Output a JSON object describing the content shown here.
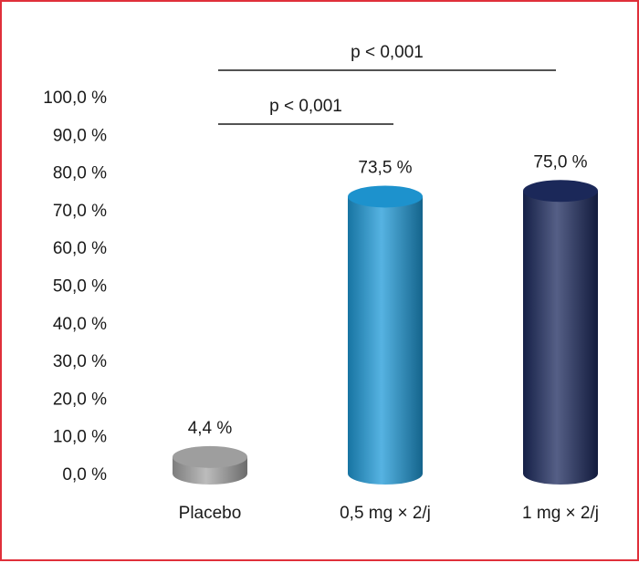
{
  "chart_data": {
    "type": "bar",
    "style": "3d-cylinder",
    "categories": [
      "Placebo",
      "0,5 mg × 2/j",
      "1 mg × 2/j"
    ],
    "values": [
      4.4,
      73.5,
      75.0
    ],
    "value_labels": [
      "4,4 %",
      "73,5 %",
      "75,0 %"
    ],
    "colors": [
      "#a6a6a6",
      "#1e9ad8",
      "#1c2a5e"
    ],
    "ylim": [
      0,
      100
    ],
    "yticks": [
      0,
      10,
      20,
      30,
      40,
      50,
      60,
      70,
      80,
      90,
      100
    ],
    "ytick_labels": [
      "0,0 %",
      "10,0 %",
      "20,0 %",
      "30,0 %",
      "40,0 %",
      "50,0 %",
      "60,0 %",
      "70,0 %",
      "80,0 %",
      "90,0 %",
      "100,0 %"
    ],
    "title": "",
    "xlabel": "",
    "ylabel": "",
    "grid": false,
    "legend": "none",
    "annotations": [
      {
        "text": "p < 0,001",
        "from": "Placebo",
        "to": "1 mg × 2/j"
      },
      {
        "text": "p < 0,001",
        "from": "Placebo",
        "to": "0,5 mg × 2/j"
      }
    ]
  },
  "frame": {
    "border_color": "#e0303a"
  }
}
